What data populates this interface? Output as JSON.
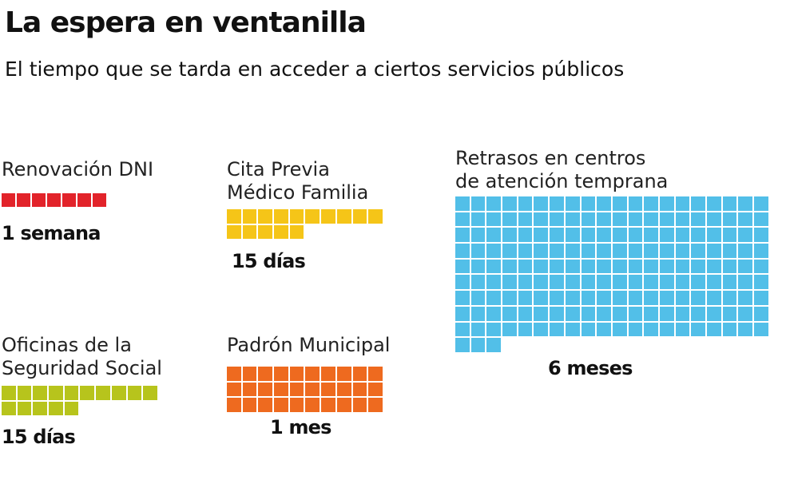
{
  "title": "La espera en ventanilla",
  "subtitle": "El tiempo que se tarda en acceder a ciertos servicios públicos",
  "chart_data": {
    "type": "waffle",
    "unit": "día",
    "items": [
      {
        "label": "Renovación DNI",
        "value": 7,
        "value_label": "1 semana",
        "color": "#e2232a"
      },
      {
        "label": "Cita Previa\nMédico Familia",
        "value": 15,
        "value_label": "15 días",
        "color": "#f5c518"
      },
      {
        "label": "Retrasos en centros\nde atención temprana",
        "value": 183,
        "value_label": "6 meses",
        "color": "#52bfe8"
      },
      {
        "label": "Oficinas de la\nSeguridad Social",
        "value": 15,
        "value_label": "15 días",
        "color": "#b7c41c"
      },
      {
        "label": "Padrón Municipal",
        "value": 30,
        "value_label": "1 mes",
        "color": "#ee6a1f"
      }
    ]
  }
}
